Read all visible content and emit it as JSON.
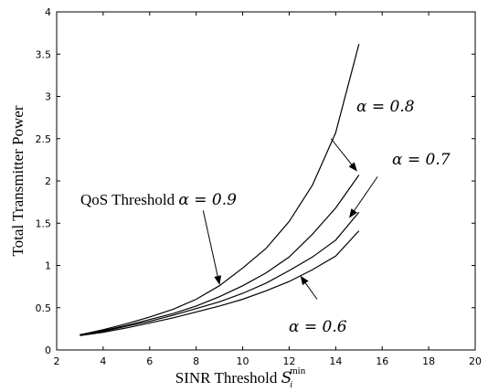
{
  "chart_data": {
    "type": "line",
    "title": "",
    "xlabel": "SINR Threshold",
    "xlabel_math": "S",
    "xlabel_sup": "min",
    "xlabel_sub": "i",
    "ylabel": "Total Transmitter Power",
    "xlim": [
      2,
      20
    ],
    "ylim": [
      0,
      4
    ],
    "xticks": [
      2,
      4,
      6,
      8,
      10,
      12,
      14,
      16,
      18,
      20
    ],
    "yticks": [
      0,
      0.5,
      1,
      1.5,
      2,
      2.5,
      3,
      3.5,
      4
    ],
    "xtick_labels": [
      "2",
      "4",
      "6",
      "8",
      "10",
      "12",
      "14",
      "16",
      "18",
      "20"
    ],
    "ytick_labels": [
      "0",
      "0.5",
      "1",
      "1.5",
      "2",
      "2.5",
      "3",
      "3.5",
      "4"
    ],
    "grid": false,
    "series": [
      {
        "x": [
          3,
          4,
          5,
          6,
          7,
          8,
          9,
          10,
          11,
          12,
          13,
          14,
          15
        ],
        "values": [
          0.18,
          0.24,
          0.31,
          0.39,
          0.48,
          0.6,
          0.76,
          0.97,
          1.2,
          1.52,
          1.95,
          2.57,
          3.62
        ]
      },
      {
        "x": [
          3,
          4,
          5,
          6,
          7,
          8,
          9,
          10,
          11,
          12,
          13,
          14,
          15
        ],
        "values": [
          0.18,
          0.23,
          0.29,
          0.36,
          0.43,
          0.52,
          0.63,
          0.76,
          0.91,
          1.1,
          1.37,
          1.68,
          2.07
        ]
      },
      {
        "x": [
          3,
          4,
          5,
          6,
          7,
          8,
          9,
          10,
          11,
          12,
          13,
          14,
          15
        ],
        "values": [
          0.18,
          0.22,
          0.28,
          0.34,
          0.41,
          0.49,
          0.57,
          0.67,
          0.79,
          0.94,
          1.1,
          1.3,
          1.63
        ]
      },
      {
        "x": [
          3,
          4,
          5,
          6,
          7,
          8,
          9,
          10,
          11,
          12,
          13,
          14,
          15
        ],
        "values": [
          0.17,
          0.21,
          0.26,
          0.32,
          0.38,
          0.45,
          0.52,
          0.6,
          0.7,
          0.81,
          0.95,
          1.11,
          1.41
        ]
      }
    ],
    "annotations": [
      {
        "text": "QoS Threshold ",
        "math": "α = 0.9"
      },
      {
        "text": "",
        "math": "α = 0.8"
      },
      {
        "text": "",
        "math": "α = 0.7"
      },
      {
        "text": "",
        "math": "α = 0.6"
      }
    ]
  }
}
